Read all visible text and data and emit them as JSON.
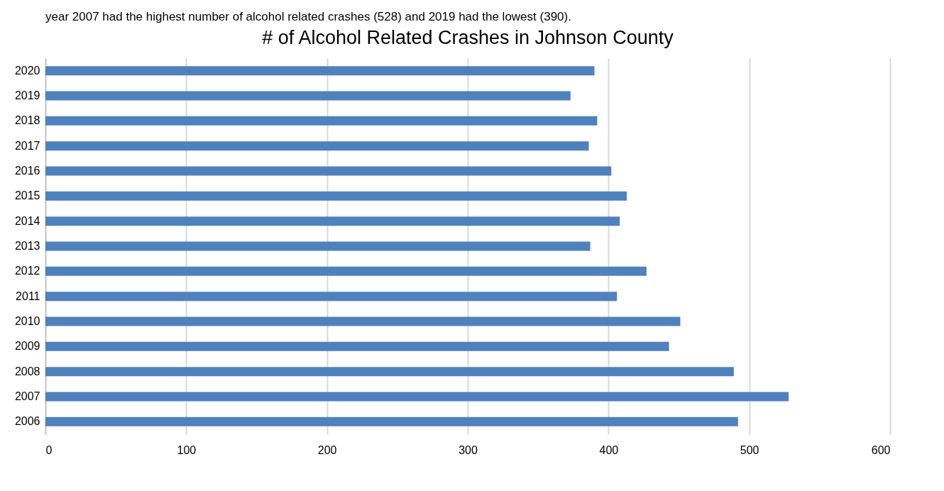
{
  "chart_data": {
    "type": "bar",
    "orientation": "horizontal",
    "title": "# of Alcohol Related Crashes in Johnson County",
    "annotations": [
      "year 2007 had the highest number of alcohol related crashes (528) and 2019 had the lowest (390)."
    ],
    "categories": [
      "2020",
      "2019",
      "2018",
      "2017",
      "2016",
      "2015",
      "2014",
      "2013",
      "2012",
      "2011",
      "2010",
      "2009",
      "2008",
      "2007",
      "2006"
    ],
    "values": [
      390,
      373,
      392,
      386,
      402,
      413,
      408,
      387,
      427,
      406,
      451,
      443,
      489,
      528,
      492
    ],
    "color": "#4f81bd",
    "xlim": [
      0,
      600
    ],
    "xticks": [
      0,
      100,
      200,
      300,
      400,
      500,
      600
    ],
    "grid": "x"
  }
}
